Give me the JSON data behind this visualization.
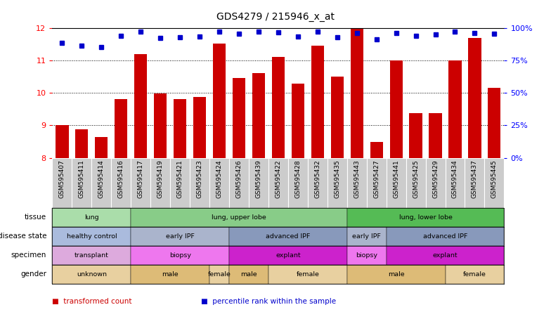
{
  "title": "GDS4279 / 215946_x_at",
  "samples": [
    "GSM595407",
    "GSM595411",
    "GSM595414",
    "GSM595416",
    "GSM595417",
    "GSM595419",
    "GSM595421",
    "GSM595423",
    "GSM595424",
    "GSM595426",
    "GSM595439",
    "GSM595422",
    "GSM595428",
    "GSM595432",
    "GSM595435",
    "GSM595443",
    "GSM595427",
    "GSM595441",
    "GSM595425",
    "GSM595429",
    "GSM595434",
    "GSM595437",
    "GSM595445"
  ],
  "bar_values": [
    9.0,
    8.87,
    8.65,
    9.82,
    11.2,
    9.98,
    9.82,
    9.87,
    11.52,
    10.45,
    10.62,
    11.1,
    10.28,
    11.45,
    10.5,
    12.0,
    8.48,
    11.0,
    9.38,
    9.38,
    11.0,
    11.7,
    10.15
  ],
  "dot_y": [
    11.55,
    11.45,
    11.42,
    11.75,
    11.9,
    11.7,
    11.72,
    11.74,
    11.9,
    11.82,
    11.9,
    11.86,
    11.74,
    11.88,
    11.72,
    11.85,
    11.65,
    11.85,
    11.77,
    11.8,
    11.9,
    11.85,
    11.82
  ],
  "ylim": [
    8,
    12
  ],
  "yticks": [
    8,
    9,
    10,
    11,
    12
  ],
  "right_yticks": [
    0,
    25,
    50,
    75,
    100
  ],
  "right_ylabels": [
    "0%",
    "25%",
    "50%",
    "75%",
    "100%"
  ],
  "bar_color": "#cc0000",
  "dot_color": "#0000cc",
  "tissue_groups": [
    {
      "label": "lung",
      "start": 0,
      "end": 4,
      "color": "#aaddaa"
    },
    {
      "label": "lung, upper lobe",
      "start": 4,
      "end": 15,
      "color": "#88cc88"
    },
    {
      "label": "lung, lower lobe",
      "start": 15,
      "end": 23,
      "color": "#55bb55"
    }
  ],
  "disease_groups": [
    {
      "label": "healthy control",
      "start": 0,
      "end": 4,
      "color": "#aabbdd"
    },
    {
      "label": "early IPF",
      "start": 4,
      "end": 9,
      "color": "#aab4cc"
    },
    {
      "label": "advanced IPF",
      "start": 9,
      "end": 15,
      "color": "#8899bb"
    },
    {
      "label": "early IPF",
      "start": 15,
      "end": 17,
      "color": "#aab4cc"
    },
    {
      "label": "advanced IPF",
      "start": 17,
      "end": 23,
      "color": "#8899bb"
    }
  ],
  "specimen_groups": [
    {
      "label": "transplant",
      "start": 0,
      "end": 4,
      "color": "#ddaadd"
    },
    {
      "label": "biopsy",
      "start": 4,
      "end": 9,
      "color": "#ee77ee"
    },
    {
      "label": "explant",
      "start": 9,
      "end": 15,
      "color": "#cc22cc"
    },
    {
      "label": "biopsy",
      "start": 15,
      "end": 17,
      "color": "#ee77ee"
    },
    {
      "label": "explant",
      "start": 17,
      "end": 23,
      "color": "#cc22cc"
    }
  ],
  "gender_groups": [
    {
      "label": "unknown",
      "start": 0,
      "end": 4,
      "color": "#e8d0a0"
    },
    {
      "label": "male",
      "start": 4,
      "end": 8,
      "color": "#ddbb77"
    },
    {
      "label": "female",
      "start": 8,
      "end": 9,
      "color": "#e8d0a0"
    },
    {
      "label": "male",
      "start": 9,
      "end": 11,
      "color": "#ddbb77"
    },
    {
      "label": "female",
      "start": 11,
      "end": 15,
      "color": "#e8d0a0"
    },
    {
      "label": "male",
      "start": 15,
      "end": 20,
      "color": "#ddbb77"
    },
    {
      "label": "female",
      "start": 20,
      "end": 23,
      "color": "#e8d0a0"
    }
  ],
  "legend_items": [
    {
      "label": "transformed count",
      "color": "#cc0000"
    },
    {
      "label": "percentile rank within the sample",
      "color": "#0000cc"
    }
  ],
  "row_labels": [
    "tissue",
    "disease state",
    "specimen",
    "gender"
  ],
  "sample_bg_color": "#cccccc",
  "background_color": "#ffffff",
  "title_fontsize": 10,
  "tick_fontsize": 6.5
}
